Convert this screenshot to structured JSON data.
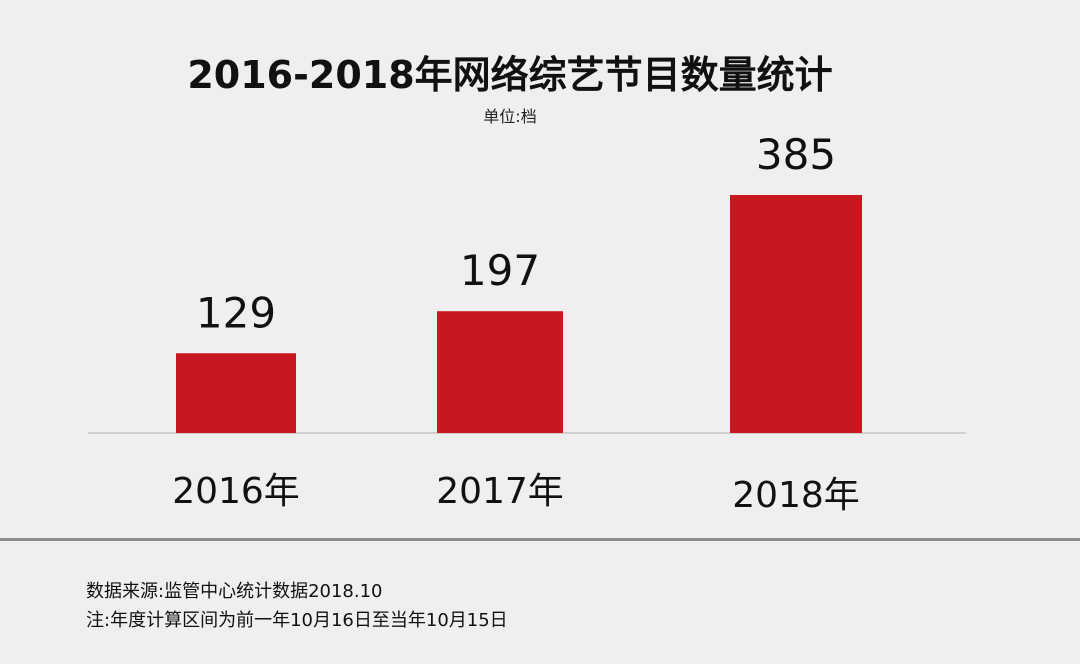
{
  "header": {
    "title": "2016-2018年网络综艺节目数量统计",
    "unit": "单位:档"
  },
  "chart_data": {
    "type": "bar",
    "title": "2016-2018年网络综艺节目数量统计",
    "subtitle": "单位:档",
    "categories": [
      "2016年",
      "2017年",
      "2018年"
    ],
    "values": [
      129,
      197,
      385
    ],
    "value_labels": [
      "129",
      "197",
      "385"
    ],
    "ylim": [
      0,
      385
    ],
    "grid": false,
    "bar_color": "#c8171e"
  },
  "footer": {
    "source": "数据来源:监管中心统计数据2018.10",
    "note": "注:年度计算区间为前一年10月16日至当年10月15日"
  }
}
